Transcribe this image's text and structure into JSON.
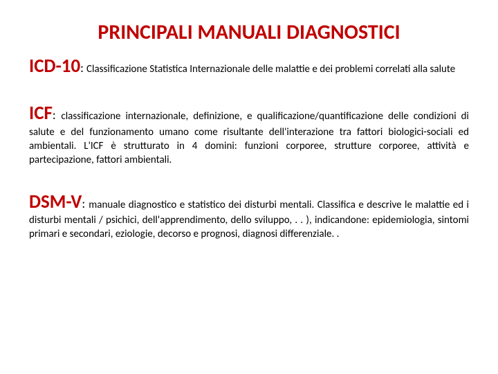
{
  "colors": {
    "title": "#c00000",
    "term": "#c00000",
    "body": "#000000"
  },
  "fontsizes": {
    "title": 30,
    "term": 27,
    "colon": 18,
    "desc": 15
  },
  "title": "PRINCIPALI MANUALI DIAGNOSTICI",
  "entries": [
    {
      "term": "ICD-10",
      "desc": "Classificazione Statistica Internazionale delle malattie e dei problemi correlati alla salute"
    },
    {
      "term": "ICF",
      "desc": "classificazione internazionale, definizione, e qualificazione/quantificazione delle condizioni di salute e del funzionamento umano come risultante dell'interazione tra fattori biologici-sociali ed ambientali. L'ICF è strutturato in 4 domini: funzioni corporee, strutture corporee, attività e partecipazione, fattori ambientali."
    },
    {
      "term": "DSM-V",
      "desc": "manuale diagnostico e statistico dei disturbi mentali. Classifica e descrive le malattie ed i disturbi mentali / psichici, dell'apprendimento, dello sviluppo, . . ), indicandone: epidemiologia, sintomi primari e secondari, eziologie, decorso e prognosi, diagnosi differenziale. ."
    }
  ]
}
